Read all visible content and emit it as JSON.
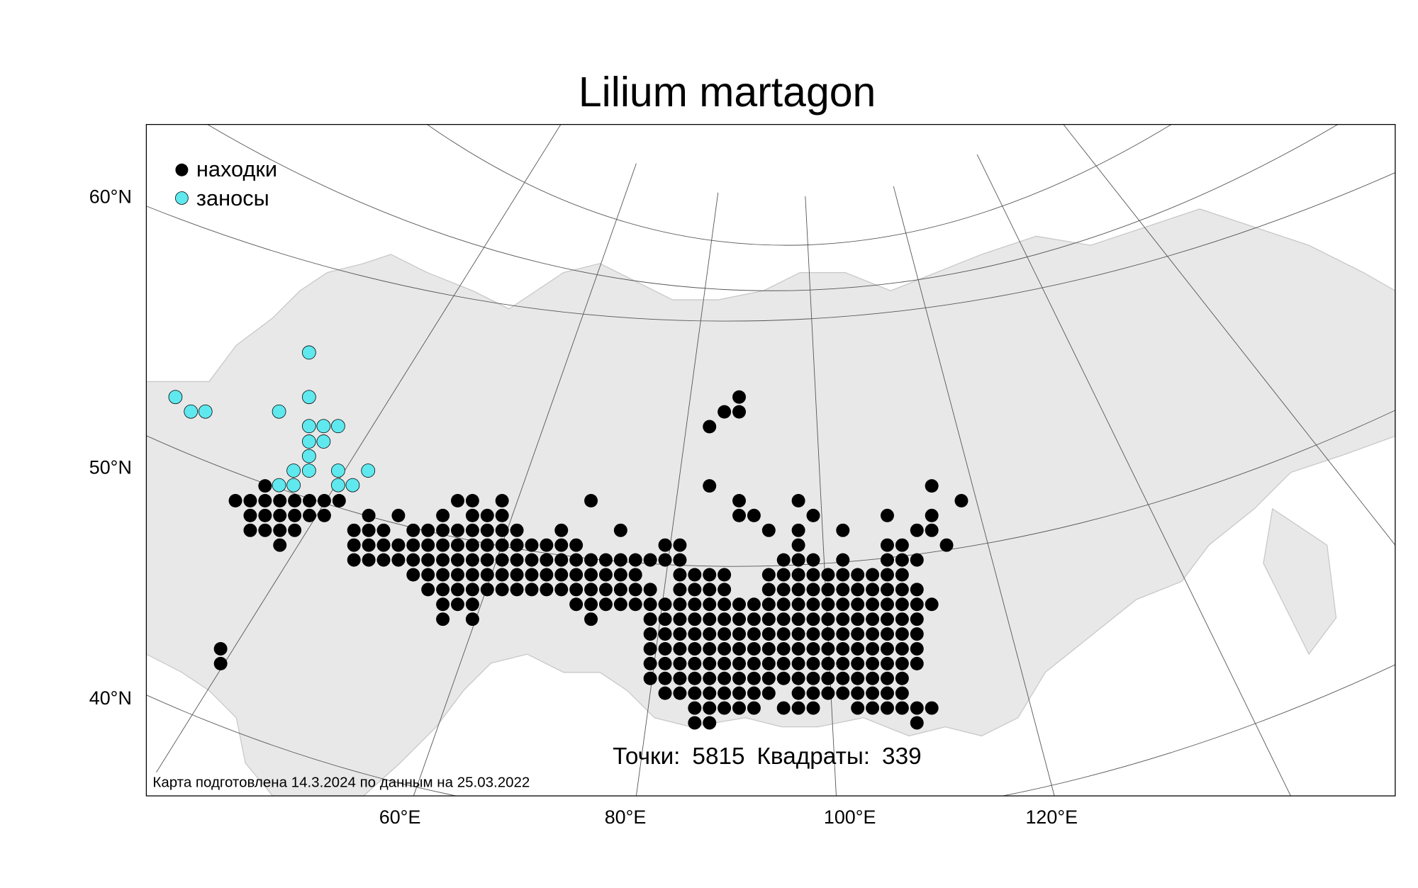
{
  "title": "Lilium martagon",
  "legend": {
    "found": "находки",
    "introduced": "заносы"
  },
  "lat_labels": [
    "60°N",
    "50°N",
    "40°N"
  ],
  "lon_labels": [
    "60°E",
    "80°E",
    "100°E",
    "120°E"
  ],
  "stats": {
    "points_label": "Точки:",
    "points": 5815,
    "squares_label": "Квадраты:",
    "squares": 339
  },
  "footnote": "Карта подготовлена 14.3.2024 по данным на 25.03.2022"
}
